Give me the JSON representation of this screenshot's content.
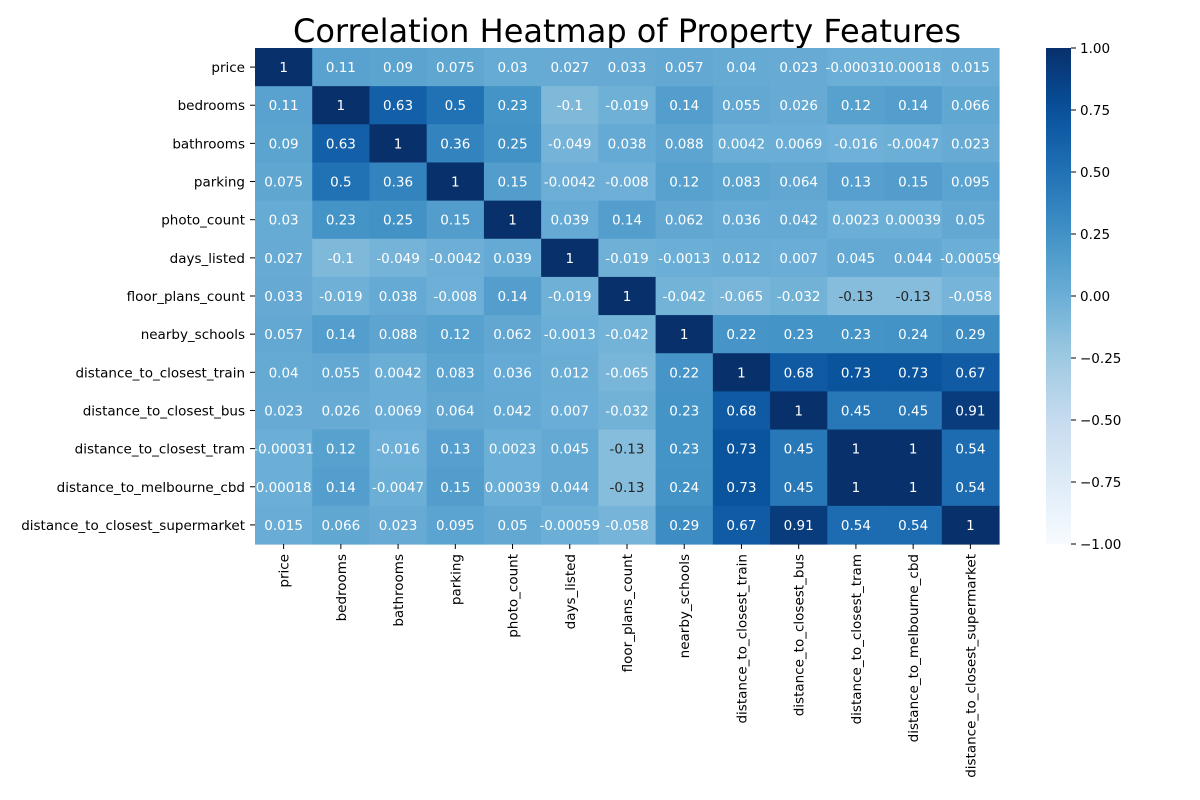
{
  "chart_data": {
    "type": "heatmap",
    "title": "Correlation Heatmap of Property Features",
    "xlabel": "",
    "ylabel": "",
    "colormap": "Blues",
    "vmin": -1,
    "vmax": 1,
    "colorbar_ticks": [
      {
        "value": 1.0,
        "label": "1.00"
      },
      {
        "value": 0.75,
        "label": "0.75"
      },
      {
        "value": 0.5,
        "label": "0.50"
      },
      {
        "value": 0.25,
        "label": "0.25"
      },
      {
        "value": 0.0,
        "label": "0.00"
      },
      {
        "value": -0.25,
        "label": "−0.25"
      },
      {
        "value": -0.5,
        "label": "−0.50"
      },
      {
        "value": -0.75,
        "label": "−0.75"
      },
      {
        "value": -1.0,
        "label": "−1.00"
      }
    ],
    "labels": [
      "price",
      "bedrooms",
      "bathrooms",
      "parking",
      "photo_count",
      "days_listed",
      "floor_plans_count",
      "nearby_schools",
      "distance_to_closest_train",
      "distance_to_closest_bus",
      "distance_to_closest_tram",
      "distance_to_melbourne_cbd",
      "distance_to_closest_supermarket"
    ],
    "values": [
      [
        1,
        0.11,
        0.09,
        0.075,
        0.03,
        0.027,
        0.033,
        0.057,
        0.04,
        0.023,
        -0.00031,
        0.00018,
        0.015
      ],
      [
        0.11,
        1,
        0.63,
        0.5,
        0.23,
        -0.1,
        -0.019,
        0.14,
        0.055,
        0.026,
        0.12,
        0.14,
        0.066
      ],
      [
        0.09,
        0.63,
        1,
        0.36,
        0.25,
        -0.049,
        0.038,
        0.088,
        0.0042,
        0.0069,
        -0.016,
        -0.0047,
        0.023
      ],
      [
        0.075,
        0.5,
        0.36,
        1,
        0.15,
        -0.0042,
        -0.008,
        0.12,
        0.083,
        0.064,
        0.13,
        0.15,
        0.095
      ],
      [
        0.03,
        0.23,
        0.25,
        0.15,
        1,
        0.039,
        0.14,
        0.062,
        0.036,
        0.042,
        0.0023,
        0.00039,
        0.05
      ],
      [
        0.027,
        -0.1,
        -0.049,
        -0.0042,
        0.039,
        1,
        -0.019,
        -0.0013,
        0.012,
        0.007,
        0.045,
        0.044,
        -0.00059
      ],
      [
        0.033,
        -0.019,
        0.038,
        -0.008,
        0.14,
        -0.019,
        1,
        -0.042,
        -0.065,
        -0.032,
        -0.13,
        -0.13,
        -0.058
      ],
      [
        0.057,
        0.14,
        0.088,
        0.12,
        0.062,
        -0.0013,
        -0.042,
        1,
        0.22,
        0.23,
        0.23,
        0.24,
        0.29
      ],
      [
        0.04,
        0.055,
        0.0042,
        0.083,
        0.036,
        0.012,
        -0.065,
        0.22,
        1,
        0.68,
        0.73,
        0.73,
        0.67
      ],
      [
        0.023,
        0.026,
        0.0069,
        0.064,
        0.042,
        0.007,
        -0.032,
        0.23,
        0.68,
        1,
        0.45,
        0.45,
        0.91
      ],
      [
        -0.00031,
        0.12,
        -0.016,
        0.13,
        0.0023,
        0.045,
        -0.13,
        0.23,
        0.73,
        0.45,
        1,
        1,
        0.54
      ],
      [
        0.00018,
        0.14,
        -0.0047,
        0.15,
        0.00039,
        0.044,
        -0.13,
        0.24,
        0.73,
        0.45,
        1,
        1,
        0.54
      ],
      [
        0.015,
        0.066,
        0.023,
        0.095,
        0.05,
        -0.00059,
        -0.058,
        0.29,
        0.67,
        0.91,
        0.54,
        0.54,
        1
      ]
    ],
    "cell_labels": [
      [
        "1",
        "0.11",
        "0.09",
        "0.075",
        "0.03",
        "0.027",
        "0.033",
        "0.057",
        "0.04",
        "0.023",
        "-0.00031",
        "0.00018",
        "0.015"
      ],
      [
        "0.11",
        "1",
        "0.63",
        "0.5",
        "0.23",
        "-0.1",
        "-0.019",
        "0.14",
        "0.055",
        "0.026",
        "0.12",
        "0.14",
        "0.066"
      ],
      [
        "0.09",
        "0.63",
        "1",
        "0.36",
        "0.25",
        "-0.049",
        "0.038",
        "0.088",
        "0.0042",
        "0.0069",
        "-0.016",
        "-0.0047",
        "0.023"
      ],
      [
        "0.075",
        "0.5",
        "0.36",
        "1",
        "0.15",
        "-0.0042",
        "-0.008",
        "0.12",
        "0.083",
        "0.064",
        "0.13",
        "0.15",
        "0.095"
      ],
      [
        "0.03",
        "0.23",
        "0.25",
        "0.15",
        "1",
        "0.039",
        "0.14",
        "0.062",
        "0.036",
        "0.042",
        "0.0023",
        "0.00039",
        "0.05"
      ],
      [
        "0.027",
        "-0.1",
        "-0.049",
        "-0.0042",
        "0.039",
        "1",
        "-0.019",
        "-0.0013",
        "0.012",
        "0.007",
        "0.045",
        "0.044",
        "-0.00059"
      ],
      [
        "0.033",
        "-0.019",
        "0.038",
        "-0.008",
        "0.14",
        "-0.019",
        "1",
        "-0.042",
        "-0.065",
        "-0.032",
        "-0.13",
        "-0.13",
        "-0.058"
      ],
      [
        "0.057",
        "0.14",
        "0.088",
        "0.12",
        "0.062",
        "-0.0013",
        "-0.042",
        "1",
        "0.22",
        "0.23",
        "0.23",
        "0.24",
        "0.29"
      ],
      [
        "0.04",
        "0.055",
        "0.0042",
        "0.083",
        "0.036",
        "0.012",
        "-0.065",
        "0.22",
        "1",
        "0.68",
        "0.73",
        "0.73",
        "0.67"
      ],
      [
        "0.023",
        "0.026",
        "0.0069",
        "0.064",
        "0.042",
        "0.007",
        "-0.032",
        "0.23",
        "0.68",
        "1",
        "0.45",
        "0.45",
        "0.91"
      ],
      [
        "-0.00031",
        "0.12",
        "-0.016",
        "0.13",
        "0.0023",
        "0.045",
        "-0.13",
        "0.23",
        "0.73",
        "0.45",
        "1",
        "1",
        "0.54"
      ],
      [
        "0.00018",
        "0.14",
        "-0.0047",
        "0.15",
        "0.00039",
        "0.044",
        "-0.13",
        "0.24",
        "0.73",
        "0.45",
        "1",
        "1",
        "0.54"
      ],
      [
        "0.015",
        "0.066",
        "0.023",
        "0.095",
        "0.05",
        "-0.00059",
        "-0.058",
        "0.29",
        "0.67",
        "0.91",
        "0.54",
        "0.54",
        "1"
      ]
    ]
  }
}
